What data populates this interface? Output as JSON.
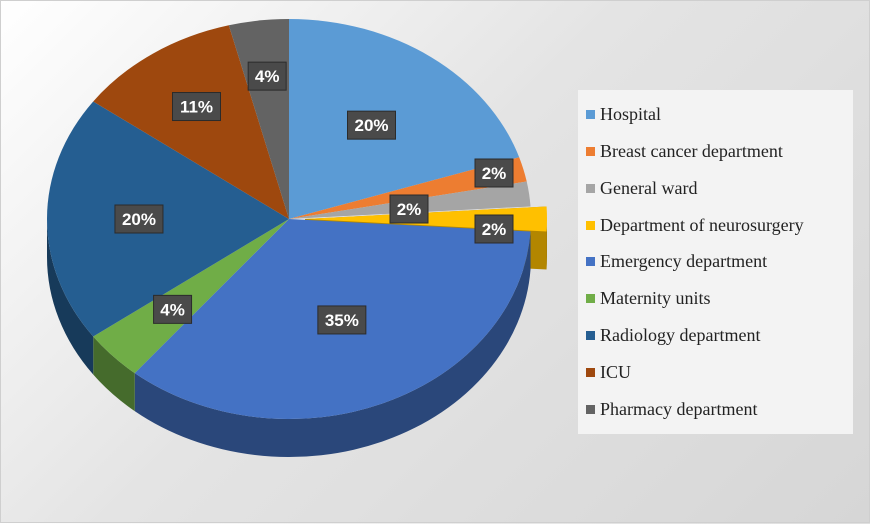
{
  "chart_data": {
    "type": "pie",
    "title": "",
    "legend_position": "right",
    "slices": [
      {
        "name": "Hospital",
        "value": 20,
        "label": "20%",
        "color": "#5b9bd5"
      },
      {
        "name": "Breast cancer department",
        "value": 2,
        "label": "2%",
        "color": "#ed7d31"
      },
      {
        "name": "General ward",
        "value": 2,
        "label": "2%",
        "color": "#a5a5a5"
      },
      {
        "name": "Department of neurosurgery",
        "value": 2,
        "label": "2%",
        "color": "#ffc000"
      },
      {
        "name": "Emergency department",
        "value": 35,
        "label": "35%",
        "color": "#4472c4"
      },
      {
        "name": "Maternity units",
        "value": 4,
        "label": "4%",
        "color": "#70ad47"
      },
      {
        "name": "Radiology department",
        "value": 20,
        "label": "20%",
        "color": "#255e91"
      },
      {
        "name": "ICU",
        "value": 11,
        "label": "11%",
        "color": "#9e480e"
      },
      {
        "name": "Pharmacy department",
        "value": 4,
        "label": "4%",
        "color": "#636363"
      }
    ]
  }
}
